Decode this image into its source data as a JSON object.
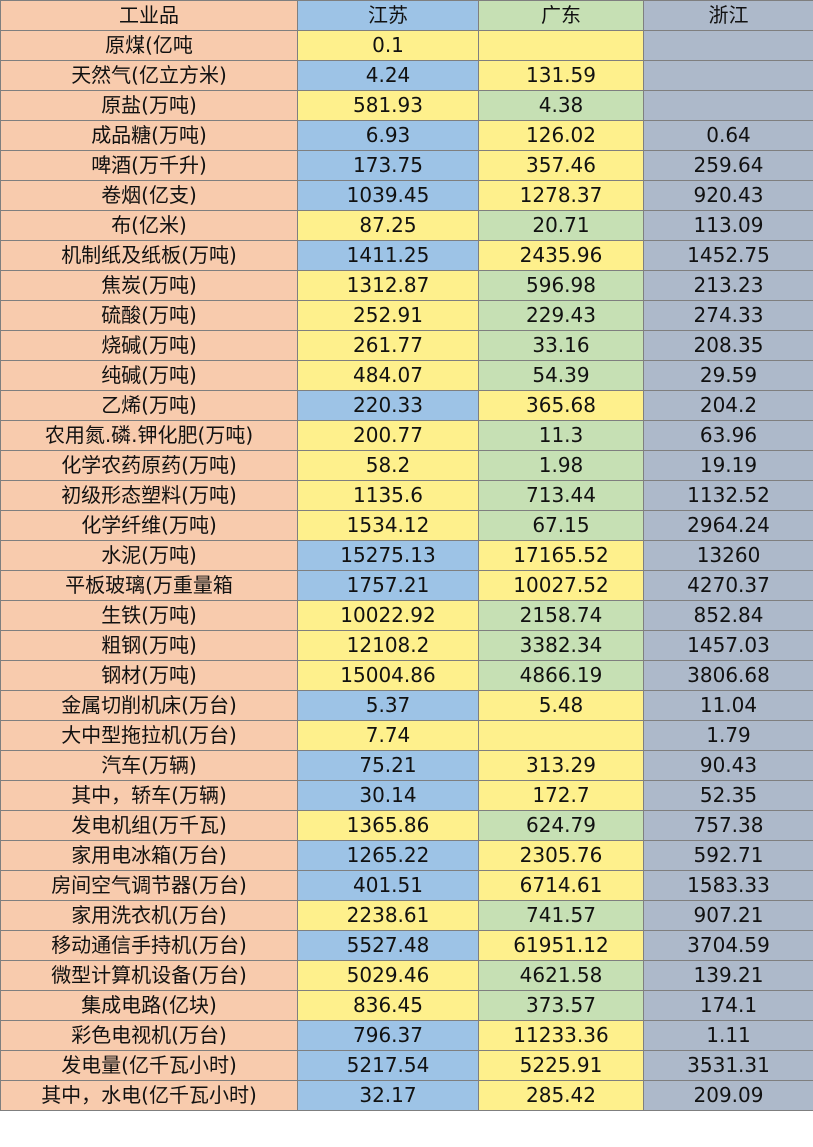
{
  "table": {
    "header": {
      "cells": [
        "工业品",
        "江苏",
        "广东",
        "浙江"
      ],
      "fills": [
        "#f8cbad",
        "#9dc3e6",
        "#c6e0b4",
        "#adb9ca"
      ]
    },
    "label_fill": "#f8cbad",
    "rows": [
      {
        "cells": [
          "原煤(亿吨",
          0.1,
          null,
          null
        ],
        "fills": [
          "#fef08c",
          "#fef08c",
          "#adb9ca"
        ]
      },
      {
        "cells": [
          "天然气(亿立方米)",
          4.24,
          131.59,
          null
        ],
        "fills": [
          "#9dc3e6",
          "#fef08c",
          "#adb9ca"
        ]
      },
      {
        "cells": [
          "原盐(万吨)",
          581.93,
          4.38,
          null
        ],
        "fills": [
          "#fef08c",
          "#c6e0b4",
          "#adb9ca"
        ]
      },
      {
        "cells": [
          "成品糖(万吨)",
          6.93,
          126.02,
          0.64
        ],
        "fills": [
          "#9dc3e6",
          "#fef08c",
          "#adb9ca"
        ]
      },
      {
        "cells": [
          "啤酒(万千升)",
          173.75,
          357.46,
          259.64
        ],
        "fills": [
          "#9dc3e6",
          "#fef08c",
          "#adb9ca"
        ]
      },
      {
        "cells": [
          "卷烟(亿支)",
          1039.45,
          1278.37,
          920.43
        ],
        "fills": [
          "#9dc3e6",
          "#fef08c",
          "#adb9ca"
        ]
      },
      {
        "cells": [
          "布(亿米)",
          87.25,
          20.71,
          113.09
        ],
        "fills": [
          "#fef08c",
          "#c6e0b4",
          "#adb9ca"
        ]
      },
      {
        "cells": [
          "机制纸及纸板(万吨)",
          1411.25,
          2435.96,
          1452.75
        ],
        "fills": [
          "#9dc3e6",
          "#fef08c",
          "#adb9ca"
        ]
      },
      {
        "cells": [
          "焦炭(万吨)",
          1312.87,
          596.98,
          213.23
        ],
        "fills": [
          "#fef08c",
          "#c6e0b4",
          "#adb9ca"
        ]
      },
      {
        "cells": [
          "硫酸(万吨)",
          252.91,
          229.43,
          274.33
        ],
        "fills": [
          "#fef08c",
          "#c6e0b4",
          "#adb9ca"
        ]
      },
      {
        "cells": [
          "烧碱(万吨)",
          261.77,
          33.16,
          208.35
        ],
        "fills": [
          "#fef08c",
          "#c6e0b4",
          "#adb9ca"
        ]
      },
      {
        "cells": [
          "纯碱(万吨)",
          484.07,
          54.39,
          29.59
        ],
        "fills": [
          "#fef08c",
          "#c6e0b4",
          "#adb9ca"
        ]
      },
      {
        "cells": [
          "乙烯(万吨)",
          220.33,
          365.68,
          204.2
        ],
        "fills": [
          "#9dc3e6",
          "#fef08c",
          "#adb9ca"
        ]
      },
      {
        "cells": [
          "农用氮.磷.钾化肥(万吨)",
          200.77,
          11.3,
          63.96
        ],
        "fills": [
          "#fef08c",
          "#c6e0b4",
          "#adb9ca"
        ]
      },
      {
        "cells": [
          "化学农药原药(万吨)",
          58.2,
          1.98,
          19.19
        ],
        "fills": [
          "#fef08c",
          "#c6e0b4",
          "#adb9ca"
        ]
      },
      {
        "cells": [
          "初级形态塑料(万吨)",
          1135.6,
          713.44,
          1132.52
        ],
        "fills": [
          "#fef08c",
          "#c6e0b4",
          "#adb9ca"
        ]
      },
      {
        "cells": [
          "化学纤维(万吨)",
          1534.12,
          67.15,
          2964.24
        ],
        "fills": [
          "#fef08c",
          "#c6e0b4",
          "#adb9ca"
        ]
      },
      {
        "cells": [
          "水泥(万吨)",
          15275.13,
          17165.52,
          13260
        ],
        "fills": [
          "#9dc3e6",
          "#fef08c",
          "#adb9ca"
        ]
      },
      {
        "cells": [
          "平板玻璃(万重量箱",
          1757.21,
          10027.52,
          4270.37
        ],
        "fills": [
          "#9dc3e6",
          "#fef08c",
          "#adb9ca"
        ]
      },
      {
        "cells": [
          "生铁(万吨)",
          10022.92,
          2158.74,
          852.84
        ],
        "fills": [
          "#fef08c",
          "#c6e0b4",
          "#adb9ca"
        ]
      },
      {
        "cells": [
          "粗钢(万吨)",
          12108.2,
          3382.34,
          1457.03
        ],
        "fills": [
          "#fef08c",
          "#c6e0b4",
          "#adb9ca"
        ]
      },
      {
        "cells": [
          "钢材(万吨)",
          15004.86,
          4866.19,
          3806.68
        ],
        "fills": [
          "#fef08c",
          "#c6e0b4",
          "#adb9ca"
        ]
      },
      {
        "cells": [
          "金属切削机床(万台)",
          5.37,
          5.48,
          11.04
        ],
        "fills": [
          "#9dc3e6",
          "#fef08c",
          "#adb9ca"
        ]
      },
      {
        "cells": [
          "大中型拖拉机(万台)",
          7.74,
          null,
          1.79
        ],
        "fills": [
          "#fef08c",
          "#fef08c",
          "#adb9ca"
        ]
      },
      {
        "cells": [
          "汽车(万辆)",
          75.21,
          313.29,
          90.43
        ],
        "fills": [
          "#9dc3e6",
          "#fef08c",
          "#adb9ca"
        ]
      },
      {
        "cells": [
          "其中，轿车(万辆)",
          30.14,
          172.7,
          52.35
        ],
        "fills": [
          "#9dc3e6",
          "#fef08c",
          "#adb9ca"
        ]
      },
      {
        "cells": [
          "发电机组(万千瓦)",
          1365.86,
          624.79,
          757.38
        ],
        "fills": [
          "#fef08c",
          "#c6e0b4",
          "#adb9ca"
        ]
      },
      {
        "cells": [
          "家用电冰箱(万台)",
          1265.22,
          2305.76,
          592.71
        ],
        "fills": [
          "#9dc3e6",
          "#fef08c",
          "#adb9ca"
        ]
      },
      {
        "cells": [
          "房间空气调节器(万台)",
          401.51,
          6714.61,
          1583.33
        ],
        "fills": [
          "#9dc3e6",
          "#fef08c",
          "#adb9ca"
        ]
      },
      {
        "cells": [
          "家用洗衣机(万台)",
          2238.61,
          741.57,
          907.21
        ],
        "fills": [
          "#fef08c",
          "#c6e0b4",
          "#adb9ca"
        ]
      },
      {
        "cells": [
          "移动通信手持机(万台)",
          5527.48,
          61951.12,
          3704.59
        ],
        "fills": [
          "#9dc3e6",
          "#fef08c",
          "#adb9ca"
        ]
      },
      {
        "cells": [
          "微型计算机设备(万台)",
          5029.46,
          4621.58,
          139.21
        ],
        "fills": [
          "#fef08c",
          "#c6e0b4",
          "#adb9ca"
        ]
      },
      {
        "cells": [
          "集成电路(亿块)",
          836.45,
          373.57,
          174.1
        ],
        "fills": [
          "#fef08c",
          "#c6e0b4",
          "#adb9ca"
        ]
      },
      {
        "cells": [
          "彩色电视机(万台)",
          796.37,
          11233.36,
          1.11
        ],
        "fills": [
          "#9dc3e6",
          "#fef08c",
          "#adb9ca"
        ]
      },
      {
        "cells": [
          "发电量(亿千瓦小时)",
          5217.54,
          5225.91,
          3531.31
        ],
        "fills": [
          "#9dc3e6",
          "#fef08c",
          "#adb9ca"
        ]
      },
      {
        "cells": [
          "其中，水电(亿千瓦小时)",
          32.17,
          285.42,
          209.09
        ],
        "fills": [
          "#9dc3e6",
          "#fef08c",
          "#adb9ca"
        ]
      }
    ]
  }
}
